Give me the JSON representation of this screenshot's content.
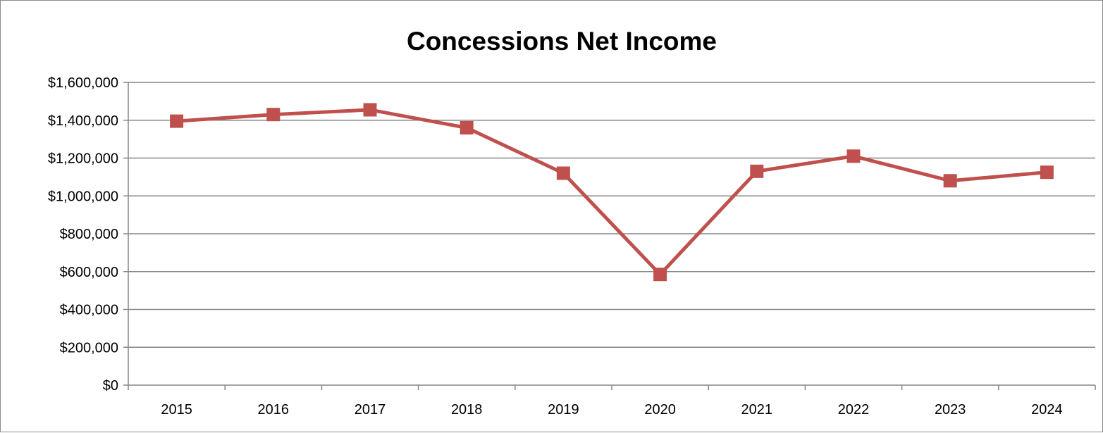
{
  "chart_data": {
    "type": "line",
    "title": "Concessions Net Income",
    "xlabel": "",
    "ylabel": "",
    "categories": [
      "2015",
      "2016",
      "2017",
      "2018",
      "2019",
      "2020",
      "2021",
      "2022",
      "2023",
      "2024"
    ],
    "series": [
      {
        "values": [
          1395000,
          1430000,
          1455000,
          1360000,
          1120000,
          585000,
          1130000,
          1210000,
          1080000,
          1125000
        ],
        "color": "#c0504d",
        "marker": "square"
      }
    ],
    "ylim": [
      0,
      1600000
    ],
    "yticks": [
      0,
      200000,
      400000,
      600000,
      800000,
      1000000,
      1200000,
      1400000,
      1600000
    ],
    "ytick_labels": [
      "$0",
      "$200,000",
      "$400,000",
      "$600,000",
      "$800,000",
      "$1,000,000",
      "$1,200,000",
      "$1,400,000",
      "$1,600,000"
    ],
    "grid": true,
    "legend": "none"
  }
}
